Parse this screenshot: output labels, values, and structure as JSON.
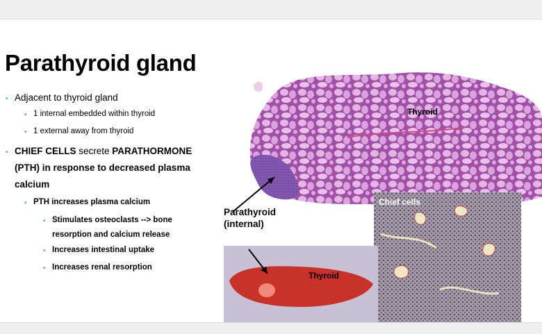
{
  "title": "Parathyroid gland",
  "bullets": {
    "b1": "Adjacent to thyroid gland",
    "b1_1": "1 internal embedded within thyroid",
    "b1_2": "1 external away from thyroid",
    "b2_part1": "CHIEF CELLS",
    "b2_part2": " secrete ",
    "b2_part3": "PARATHORMONE",
    "b2_line2": "(PTH) in response to decreased plasma",
    "b2_line3": "calcium",
    "b2_1": "PTH increases plasma calcium",
    "b2_1_1_line1": "Stimulates osteoclasts --> bone",
    "b2_1_1_line2": "resorption and calcium release",
    "b2_1_2": "Increases intestinal uptake",
    "b2_1_3": "Increases renal resorption"
  },
  "labels": {
    "thyroid_histology": "Thyroid",
    "parathyroid_line1": "Parathyroid",
    "parathyroid_line2": "(internal)",
    "thyroid_gross": "Thyroid",
    "chief_cells": "Chief cells"
  },
  "colors": {
    "bullet": "#3aa6d8",
    "histology_pink": "#c77bc9",
    "gross_red": "#c8322a"
  }
}
